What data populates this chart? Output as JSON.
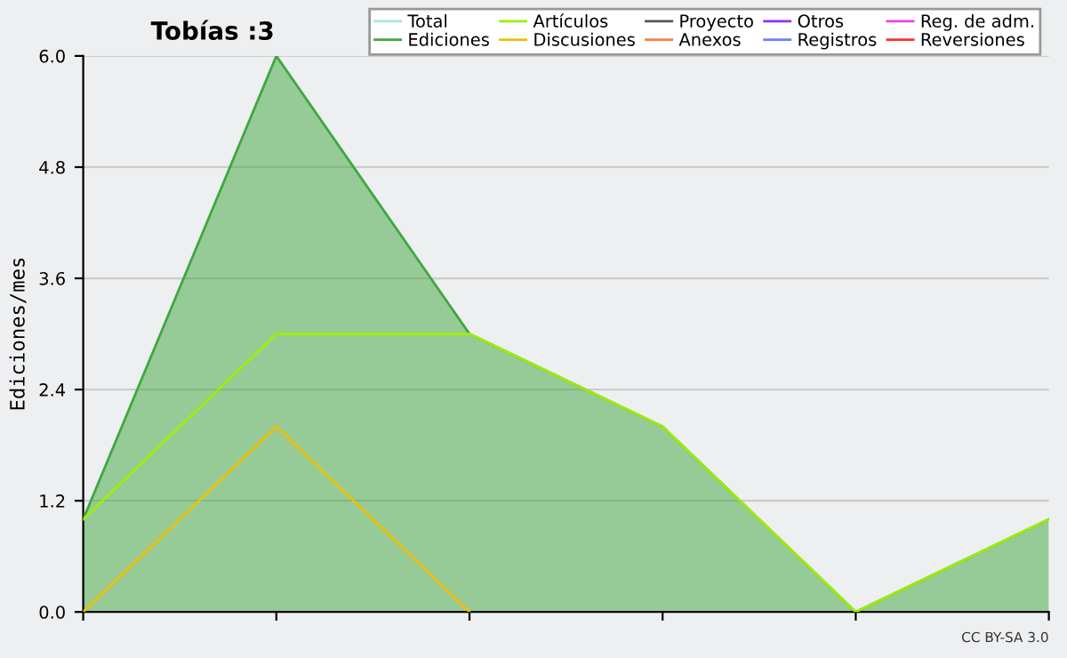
{
  "chart_data": {
    "type": "line",
    "title": "Tobías :3",
    "ylabel": "Ediciones/mes",
    "categories": [
      null,
      null,
      null,
      null,
      null,
      null
    ],
    "series": [
      {
        "name": "Total",
        "color": "#a8e4e4",
        "values": [
          null,
          null,
          null,
          null,
          null,
          null
        ]
      },
      {
        "name": "Ediciones",
        "color": "#3ea83e",
        "type": "area",
        "values": [
          1,
          6,
          3,
          2,
          0,
          1
        ]
      },
      {
        "name": "Artículos",
        "color": "#a0ee00",
        "values": [
          1,
          3,
          3,
          2,
          0,
          1
        ]
      },
      {
        "name": "Discusiones",
        "color": "#f0c000",
        "values": [
          0,
          2,
          0,
          null,
          null,
          null
        ]
      },
      {
        "name": "Proyecto",
        "color": "#555555",
        "values": [
          null,
          null,
          null,
          null,
          null,
          null
        ]
      },
      {
        "name": "Anexos",
        "color": "#ff7f40",
        "values": [
          null,
          null,
          null,
          null,
          null,
          null
        ]
      },
      {
        "name": "Otros",
        "color": "#9030ff",
        "values": [
          null,
          null,
          null,
          null,
          null,
          null
        ]
      },
      {
        "name": "Registros",
        "color": "#7080ff",
        "values": [
          null,
          null,
          null,
          null,
          null,
          null
        ]
      },
      {
        "name": "Reg. de adm.",
        "color": "#ee40ee",
        "values": [
          null,
          null,
          null,
          null,
          null,
          null
        ]
      },
      {
        "name": "Reversiones",
        "color": "#ff3030",
        "values": [
          null,
          null,
          null,
          null,
          null,
          null
        ]
      }
    ],
    "ylim": [
      0,
      6
    ],
    "yticks": [
      {
        "value": 0,
        "label": "0.0"
      },
      {
        "value": 1.2,
        "label": "1.2"
      },
      {
        "value": 2.4,
        "label": "2.4"
      },
      {
        "value": 3.6,
        "label": "3.6"
      },
      {
        "value": 4.8,
        "label": "4.8"
      },
      {
        "value": 6,
        "label": "6.0"
      }
    ],
    "grid": "y",
    "legend": "top right",
    "tick_labels": "y",
    "annotations": [
      "CC BY-SA 3.0"
    ]
  }
}
